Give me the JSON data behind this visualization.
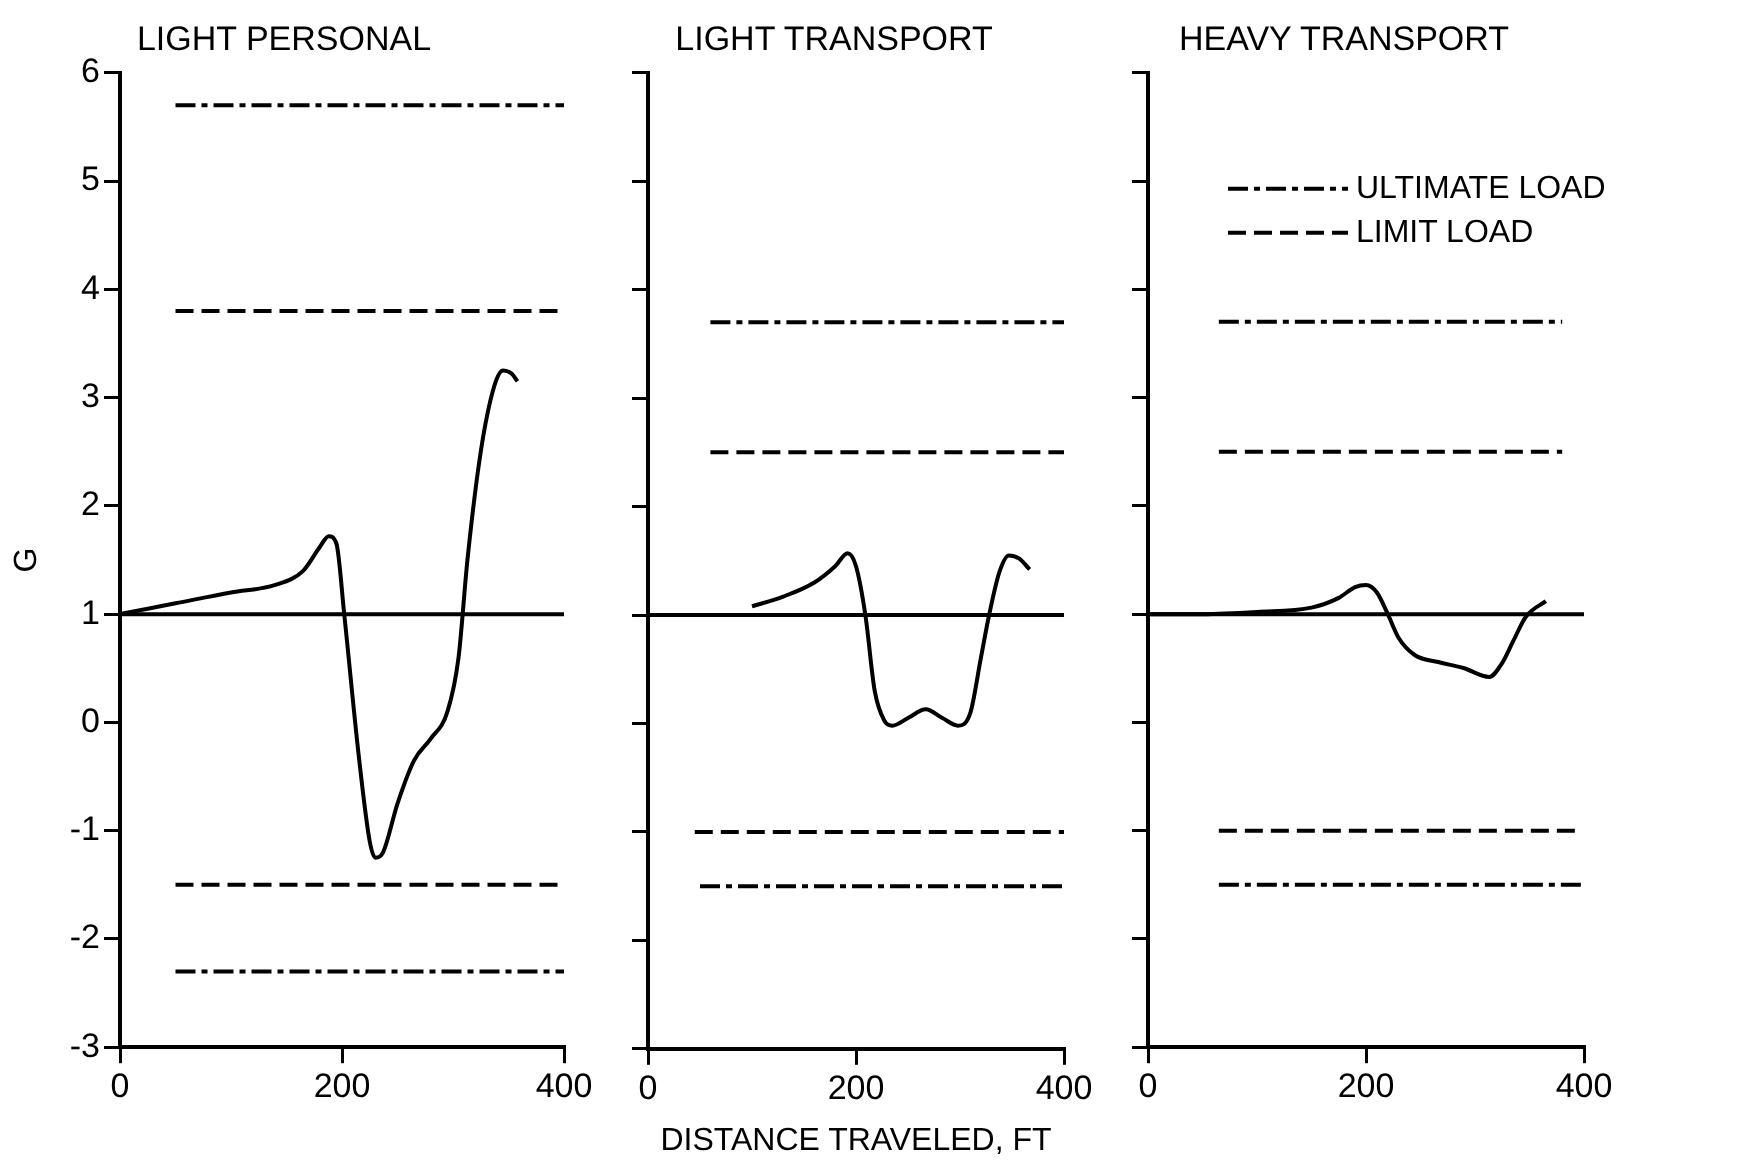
{
  "chart_data": [
    {
      "type": "line",
      "title": "LIGHT PERSONAL",
      "ylabel": "G",
      "xlim": [
        0,
        400
      ],
      "xticks": [
        0,
        200,
        400
      ],
      "ylim": [
        -3,
        6
      ],
      "yticks": [
        -3,
        -2,
        -1,
        0,
        1,
        2,
        3,
        4,
        5,
        6
      ],
      "grid": false,
      "legend": false,
      "ref_lines": [
        {
          "axis": "y",
          "value": 1,
          "color": "#000000",
          "line_style": "solid"
        }
      ],
      "series": [
        {
          "color": "#000000",
          "line_style": "solid",
          "x": [
            0,
            50,
            100,
            140,
            165,
            180,
            188,
            195,
            202,
            215,
            225,
            230,
            237,
            250,
            265,
            280,
            295,
            305,
            313,
            325,
            337,
            345,
            353,
            358
          ],
          "values": [
            1,
            1.1,
            1.2,
            1.27,
            1.4,
            1.62,
            1.72,
            1.65,
            1.0,
            -0.3,
            -1.1,
            -1.25,
            -1.2,
            -0.75,
            -0.35,
            -0.15,
            0.1,
            0.6,
            1.5,
            2.5,
            3.1,
            3.25,
            3.22,
            3.15
          ]
        },
        {
          "color": "#000000",
          "line_style": "dashdot",
          "x": [
            50,
            400
          ],
          "values": [
            5.7,
            5.7
          ]
        },
        {
          "color": "#000000",
          "line_style": "dashed",
          "x": [
            50,
            400
          ],
          "values": [
            3.8,
            3.8
          ]
        },
        {
          "color": "#000000",
          "line_style": "dashed",
          "x": [
            50,
            400
          ],
          "values": [
            -1.5,
            -1.5
          ]
        },
        {
          "color": "#000000",
          "line_style": "dashdot",
          "x": [
            50,
            400
          ],
          "values": [
            -2.3,
            -2.3
          ]
        }
      ]
    },
    {
      "type": "line",
      "title": "LIGHT TRANSPORT",
      "xlabel": "DISTANCE TRAVELED, FT",
      "xlim": [
        0,
        400
      ],
      "xticks": [
        0,
        200,
        400
      ],
      "ylim": [
        -3,
        6
      ],
      "yticks": [
        -3,
        -2,
        -1,
        0,
        1,
        2,
        3,
        4,
        5,
        6
      ],
      "tick_labels": "x",
      "grid": false,
      "legend": false,
      "ref_lines": [
        {
          "axis": "y",
          "value": 1,
          "color": "#000000",
          "line_style": "solid"
        }
      ],
      "series": [
        {
          "color": "#000000",
          "line_style": "solid",
          "x": [
            100,
            130,
            160,
            180,
            192,
            200,
            209,
            218,
            227,
            235,
            250,
            267,
            283,
            298,
            310,
            320,
            328,
            338,
            347,
            357,
            367
          ],
          "values": [
            1.08,
            1.17,
            1.3,
            1.45,
            1.57,
            1.45,
            1.0,
            0.3,
            0.03,
            -0.02,
            0.05,
            0.13,
            0.05,
            -0.02,
            0.1,
            0.6,
            1.0,
            1.4,
            1.55,
            1.52,
            1.42
          ]
        },
        {
          "color": "#000000",
          "line_style": "dashdot",
          "x": [
            60,
            400
          ],
          "values": [
            3.7,
            3.7
          ]
        },
        {
          "color": "#000000",
          "line_style": "dashed",
          "x": [
            60,
            400
          ],
          "values": [
            2.5,
            2.5
          ]
        },
        {
          "color": "#000000",
          "line_style": "dashed",
          "x": [
            45,
            400
          ],
          "values": [
            -1.0,
            -1.0
          ]
        },
        {
          "color": "#000000",
          "line_style": "dashdot",
          "x": [
            50,
            400
          ],
          "values": [
            -1.5,
            -1.5
          ]
        }
      ]
    },
    {
      "type": "line",
      "title": "HEAVY TRANSPORT",
      "xlim": [
        0,
        400
      ],
      "xticks": [
        0,
        200,
        400
      ],
      "ylim": [
        -3,
        6
      ],
      "yticks": [
        -3,
        -2,
        -1,
        0,
        1,
        2,
        3,
        4,
        5,
        6
      ],
      "tick_labels": "x",
      "grid": false,
      "legend": "top right",
      "ref_lines": [
        {
          "axis": "y",
          "value": 1,
          "color": "#000000",
          "line_style": "solid"
        }
      ],
      "series": [
        {
          "color": "#000000",
          "line_style": "solid",
          "x": [
            0,
            50,
            100,
            150,
            175,
            190,
            200,
            210,
            220,
            230,
            245,
            265,
            290,
            313,
            325,
            335,
            347,
            365
          ],
          "values": [
            1.0,
            1.0,
            1.02,
            1.06,
            1.15,
            1.25,
            1.27,
            1.2,
            1.0,
            0.78,
            0.62,
            0.56,
            0.5,
            0.42,
            0.55,
            0.75,
            0.98,
            1.12
          ]
        },
        {
          "name": "ULTIMATE LOAD",
          "color": "#000000",
          "line_style": "dashdot",
          "x": [
            65,
            380
          ],
          "values": [
            3.7,
            3.7
          ]
        },
        {
          "name": "LIMIT LOAD",
          "color": "#000000",
          "line_style": "dashed",
          "x": [
            65,
            380
          ],
          "values": [
            2.5,
            2.5
          ]
        },
        {
          "color": "#000000",
          "line_style": "dashed",
          "x": [
            65,
            395
          ],
          "values": [
            -1.0,
            -1.0
          ]
        },
        {
          "color": "#000000",
          "line_style": "dashdot",
          "x": [
            65,
            400
          ],
          "values": [
            -1.5,
            -1.5
          ]
        }
      ]
    }
  ]
}
